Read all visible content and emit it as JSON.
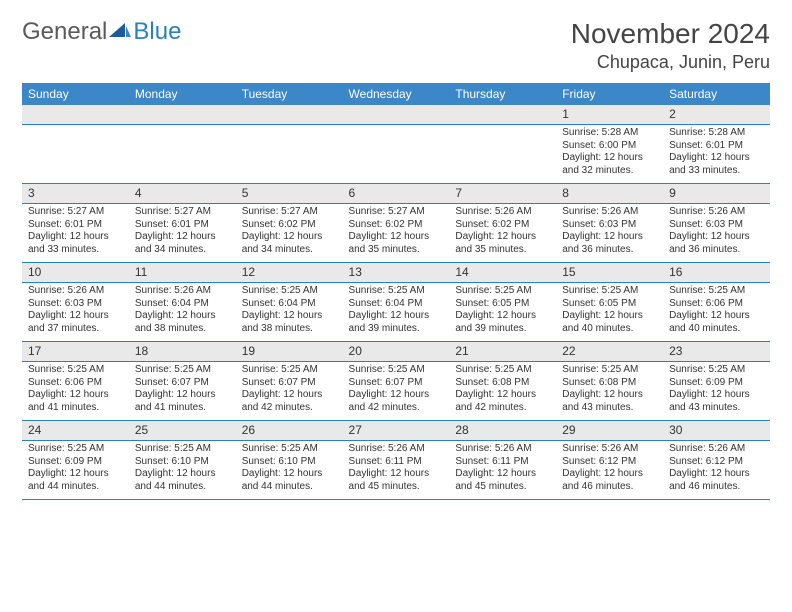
{
  "logo": {
    "general": "General",
    "blue": "Blue"
  },
  "title": "November 2024",
  "location": "Chupaca, Junin, Peru",
  "colors": {
    "header_bg": "#3b87c8",
    "border": "#2b7fbf",
    "daynum_bg": "#e9e9e9",
    "text": "#333333",
    "logo_gray": "#5a5a5a",
    "logo_blue": "#2b7fbf"
  },
  "day_labels": [
    "Sunday",
    "Monday",
    "Tuesday",
    "Wednesday",
    "Thursday",
    "Friday",
    "Saturday"
  ],
  "weeks": [
    [
      null,
      null,
      null,
      null,
      null,
      {
        "n": "1",
        "sr": "Sunrise: 5:28 AM",
        "ss": "Sunset: 6:00 PM",
        "dl": "Daylight: 12 hours and 32 minutes."
      },
      {
        "n": "2",
        "sr": "Sunrise: 5:28 AM",
        "ss": "Sunset: 6:01 PM",
        "dl": "Daylight: 12 hours and 33 minutes."
      }
    ],
    [
      {
        "n": "3",
        "sr": "Sunrise: 5:27 AM",
        "ss": "Sunset: 6:01 PM",
        "dl": "Daylight: 12 hours and 33 minutes."
      },
      {
        "n": "4",
        "sr": "Sunrise: 5:27 AM",
        "ss": "Sunset: 6:01 PM",
        "dl": "Daylight: 12 hours and 34 minutes."
      },
      {
        "n": "5",
        "sr": "Sunrise: 5:27 AM",
        "ss": "Sunset: 6:02 PM",
        "dl": "Daylight: 12 hours and 34 minutes."
      },
      {
        "n": "6",
        "sr": "Sunrise: 5:27 AM",
        "ss": "Sunset: 6:02 PM",
        "dl": "Daylight: 12 hours and 35 minutes."
      },
      {
        "n": "7",
        "sr": "Sunrise: 5:26 AM",
        "ss": "Sunset: 6:02 PM",
        "dl": "Daylight: 12 hours and 35 minutes."
      },
      {
        "n": "8",
        "sr": "Sunrise: 5:26 AM",
        "ss": "Sunset: 6:03 PM",
        "dl": "Daylight: 12 hours and 36 minutes."
      },
      {
        "n": "9",
        "sr": "Sunrise: 5:26 AM",
        "ss": "Sunset: 6:03 PM",
        "dl": "Daylight: 12 hours and 36 minutes."
      }
    ],
    [
      {
        "n": "10",
        "sr": "Sunrise: 5:26 AM",
        "ss": "Sunset: 6:03 PM",
        "dl": "Daylight: 12 hours and 37 minutes."
      },
      {
        "n": "11",
        "sr": "Sunrise: 5:26 AM",
        "ss": "Sunset: 6:04 PM",
        "dl": "Daylight: 12 hours and 38 minutes."
      },
      {
        "n": "12",
        "sr": "Sunrise: 5:25 AM",
        "ss": "Sunset: 6:04 PM",
        "dl": "Daylight: 12 hours and 38 minutes."
      },
      {
        "n": "13",
        "sr": "Sunrise: 5:25 AM",
        "ss": "Sunset: 6:04 PM",
        "dl": "Daylight: 12 hours and 39 minutes."
      },
      {
        "n": "14",
        "sr": "Sunrise: 5:25 AM",
        "ss": "Sunset: 6:05 PM",
        "dl": "Daylight: 12 hours and 39 minutes."
      },
      {
        "n": "15",
        "sr": "Sunrise: 5:25 AM",
        "ss": "Sunset: 6:05 PM",
        "dl": "Daylight: 12 hours and 40 minutes."
      },
      {
        "n": "16",
        "sr": "Sunrise: 5:25 AM",
        "ss": "Sunset: 6:06 PM",
        "dl": "Daylight: 12 hours and 40 minutes."
      }
    ],
    [
      {
        "n": "17",
        "sr": "Sunrise: 5:25 AM",
        "ss": "Sunset: 6:06 PM",
        "dl": "Daylight: 12 hours and 41 minutes."
      },
      {
        "n": "18",
        "sr": "Sunrise: 5:25 AM",
        "ss": "Sunset: 6:07 PM",
        "dl": "Daylight: 12 hours and 41 minutes."
      },
      {
        "n": "19",
        "sr": "Sunrise: 5:25 AM",
        "ss": "Sunset: 6:07 PM",
        "dl": "Daylight: 12 hours and 42 minutes."
      },
      {
        "n": "20",
        "sr": "Sunrise: 5:25 AM",
        "ss": "Sunset: 6:07 PM",
        "dl": "Daylight: 12 hours and 42 minutes."
      },
      {
        "n": "21",
        "sr": "Sunrise: 5:25 AM",
        "ss": "Sunset: 6:08 PM",
        "dl": "Daylight: 12 hours and 42 minutes."
      },
      {
        "n": "22",
        "sr": "Sunrise: 5:25 AM",
        "ss": "Sunset: 6:08 PM",
        "dl": "Daylight: 12 hours and 43 minutes."
      },
      {
        "n": "23",
        "sr": "Sunrise: 5:25 AM",
        "ss": "Sunset: 6:09 PM",
        "dl": "Daylight: 12 hours and 43 minutes."
      }
    ],
    [
      {
        "n": "24",
        "sr": "Sunrise: 5:25 AM",
        "ss": "Sunset: 6:09 PM",
        "dl": "Daylight: 12 hours and 44 minutes."
      },
      {
        "n": "25",
        "sr": "Sunrise: 5:25 AM",
        "ss": "Sunset: 6:10 PM",
        "dl": "Daylight: 12 hours and 44 minutes."
      },
      {
        "n": "26",
        "sr": "Sunrise: 5:25 AM",
        "ss": "Sunset: 6:10 PM",
        "dl": "Daylight: 12 hours and 44 minutes."
      },
      {
        "n": "27",
        "sr": "Sunrise: 5:26 AM",
        "ss": "Sunset: 6:11 PM",
        "dl": "Daylight: 12 hours and 45 minutes."
      },
      {
        "n": "28",
        "sr": "Sunrise: 5:26 AM",
        "ss": "Sunset: 6:11 PM",
        "dl": "Daylight: 12 hours and 45 minutes."
      },
      {
        "n": "29",
        "sr": "Sunrise: 5:26 AM",
        "ss": "Sunset: 6:12 PM",
        "dl": "Daylight: 12 hours and 46 minutes."
      },
      {
        "n": "30",
        "sr": "Sunrise: 5:26 AM",
        "ss": "Sunset: 6:12 PM",
        "dl": "Daylight: 12 hours and 46 minutes."
      }
    ]
  ]
}
